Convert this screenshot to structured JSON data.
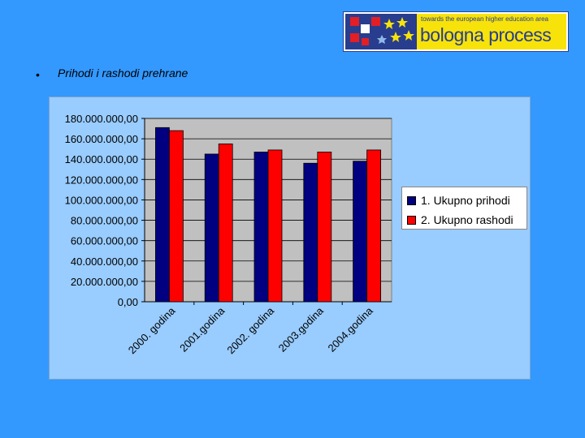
{
  "logo": {
    "icon": "bologna-process-logo",
    "tagline": "towards the european higher education area",
    "name": "bologna process"
  },
  "slide": {
    "bullet": "•",
    "title": "Prihodi i rashodi prehrane"
  },
  "colors": {
    "background": "#3399ff",
    "panel": "#99ccff",
    "plot": "#c0c0c0",
    "series1": "#000080",
    "series2": "#ff0000"
  },
  "chart_data": {
    "type": "bar",
    "title": "",
    "xlabel": "",
    "ylabel": "",
    "categories": [
      "2000. godina",
      "2001.godina",
      "2002. godina",
      "2003.godina",
      "2004.godina"
    ],
    "series": [
      {
        "name": "1. Ukupno prihodi",
        "values": [
          171000000,
          145000000,
          147000000,
          136000000,
          138000000
        ]
      },
      {
        "name": "2. Ukupno rashodi",
        "values": [
          168000000,
          155000000,
          149000000,
          147000000,
          149000000
        ]
      }
    ],
    "ylim": [
      0,
      180000000
    ],
    "ytick_labels": [
      "0,00",
      "20.000.000,00",
      "40.000.000,00",
      "60.000.000,00",
      "80.000.000,00",
      "100.000.000,00",
      "120.000.000,00",
      "140.000.000,00",
      "160.000.000,00",
      "180.000.000,00"
    ],
    "grid": true,
    "legend_position": "right"
  }
}
